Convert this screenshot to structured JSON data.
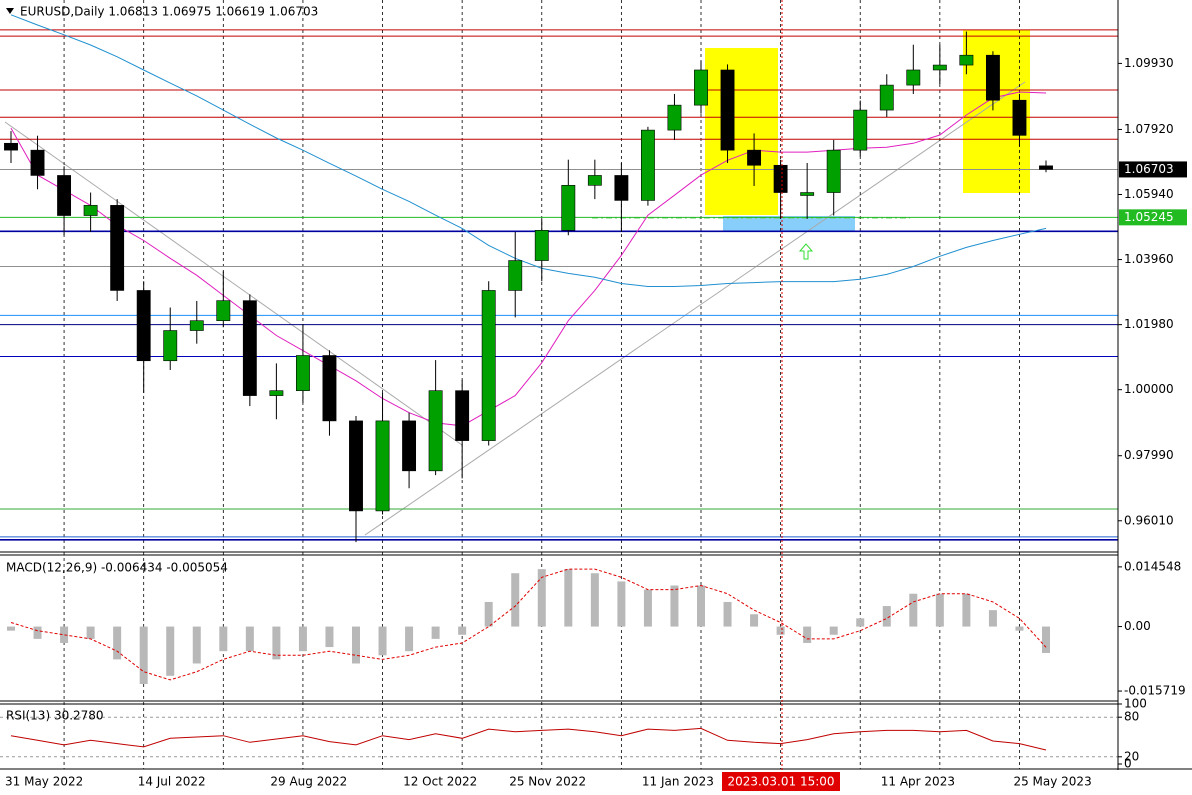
{
  "chart_data": {
    "type": "candlestick",
    "header": "EURUSD,Daily  1.06813 1.06975 1.06619 1.06703",
    "categories": [
      "31 May 2022",
      null,
      null,
      null,
      null,
      "14 Jul 2022",
      null,
      null,
      null,
      null,
      "29 Aug 2022",
      null,
      null,
      null,
      null,
      "12 Oct 2022",
      null,
      null,
      null,
      "25 Nov 2022",
      null,
      null,
      null,
      null,
      "11 Jan 2023",
      null,
      null,
      null,
      null,
      null,
      null,
      null,
      null,
      "11 Apr 2023",
      null,
      null,
      null,
      null,
      "25 May 2023",
      null
    ],
    "open": [
      1.075,
      1.0729,
      1.0652,
      1.053,
      1.0561,
      1.0302,
      1.0088,
      1.018,
      1.021,
      1.0271,
      0.9982,
      0.9997,
      1.0104,
      0.9905,
      0.9631,
      0.9905,
      0.9753,
      0.9997,
      0.9845,
      1.0302,
      1.0393,
      1.0485,
      1.0622,
      1.0652,
      1.0576,
      1.079,
      1.0866,
      1.0973,
      1.0729,
      1.0683,
      1.0591,
      1.06,
      1.0729,
      1.0851,
      1.0927,
      1.0973,
      1.0988,
      1.1018,
      1.0881,
      1.06813
    ],
    "high": [
      1.0787,
      1.0773,
      1.068,
      1.06,
      1.058,
      1.033,
      1.025,
      1.027,
      1.036,
      1.029,
      1.008,
      1.02,
      1.012,
      0.992,
      0.999,
      0.993,
      1.009,
      1.003,
      1.033,
      1.048,
      1.052,
      1.07,
      1.07,
      1.069,
      1.08,
      1.09,
      1.1,
      1.099,
      1.078,
      1.07,
      1.069,
      1.076,
      1.088,
      1.096,
      1.105,
      1.105,
      1.109,
      1.103,
      1.09,
      1.06975
    ],
    "low": [
      1.069,
      1.061,
      1.047,
      1.048,
      1.027,
      0.999,
      1.006,
      1.014,
      1.019,
      0.995,
      0.991,
      0.996,
      0.986,
      0.9536,
      0.962,
      0.97,
      0.974,
      0.973,
      0.983,
      1.022,
      1.033,
      1.047,
      1.058,
      1.048,
      1.056,
      1.076,
      1.084,
      1.069,
      1.062,
      1.052,
      1.052,
      1.053,
      1.071,
      1.083,
      1.09,
      1.093,
      1.096,
      1.085,
      1.074,
      1.06619
    ],
    "close": [
      1.0729,
      1.0652,
      1.053,
      1.0561,
      1.0302,
      1.0088,
      1.018,
      1.021,
      1.0271,
      0.9982,
      0.9997,
      1.0104,
      0.9905,
      0.9631,
      0.9905,
      0.9753,
      0.9997,
      0.9845,
      1.0302,
      1.0393,
      1.0485,
      1.0622,
      1.0652,
      1.0576,
      1.079,
      1.0866,
      1.0973,
      1.0729,
      1.0683,
      1.06,
      1.06,
      1.0729,
      1.0851,
      1.0927,
      1.0973,
      1.0988,
      1.1018,
      1.0881,
      1.0774,
      1.06703
    ],
    "up_color": "#00a000",
    "down_color": "#000000",
    "moving_averages": [
      {
        "color": "#e020c0",
        "values": [
          1.0796,
          1.0653,
          1.0607,
          1.0561,
          1.05,
          1.0454,
          1.04,
          1.0348,
          1.0287,
          1.0226,
          1.0165,
          1.0119,
          1.0073,
          1.0027,
          0.9973,
          0.993,
          0.9899,
          0.989,
          0.9936,
          0.9982,
          1.0082,
          1.021,
          1.0302,
          1.0409,
          1.0531,
          1.0592,
          1.0653,
          1.0698,
          1.0729,
          1.0723,
          1.0723,
          1.0729,
          1.0735,
          1.0738,
          1.075,
          1.0775,
          1.0836,
          1.0888,
          1.0906,
          1.0903
        ]
      },
      {
        "color": "#2090d0",
        "values": [
          1.1141,
          1.111,
          1.108,
          1.1049,
          1.1013,
          1.0973,
          1.0933,
          1.0894,
          1.0851,
          1.0808,
          1.0766,
          1.0729,
          1.0689,
          1.065,
          1.061,
          1.0573,
          1.0531,
          1.0491,
          1.0439,
          1.04,
          1.0369,
          1.0354,
          1.0342,
          1.0323,
          1.0314,
          1.0314,
          1.0317,
          1.0323,
          1.0326,
          1.0329,
          1.0329,
          1.0329,
          1.0336,
          1.0351,
          1.0375,
          1.0406,
          1.0433,
          1.0454,
          1.0473,
          1.0491
        ]
      }
    ],
    "levels": [
      {
        "value": 1.1095,
        "color": "#c00000"
      },
      {
        "value": 1.1076,
        "color": "#c00000"
      },
      {
        "value": 1.0912,
        "color": "#c00000"
      },
      {
        "value": 1.0829,
        "color": "#c00000"
      },
      {
        "value": 1.0762,
        "color": "#c00000"
      },
      {
        "value": 1.067,
        "color": "#909090"
      },
      {
        "value": 1.05245,
        "color": "#22bb22"
      },
      {
        "value": 1.0482,
        "color": "#0000a0"
      },
      {
        "value": 1.0375,
        "color": "#909090"
      },
      {
        "value": 1.0226,
        "color": "#1e90ff"
      },
      {
        "value": 1.0198,
        "color": "#000080"
      },
      {
        "value": 1.0101,
        "color": "#0000c0"
      },
      {
        "value": 0.9637,
        "color": "#33aa33"
      },
      {
        "value": 0.9552,
        "color": "#2060d0"
      },
      {
        "value": 0.9543,
        "color": "#0000a0"
      }
    ],
    "price_labels": [
      {
        "value": 1.06703,
        "color": "#000000"
      },
      {
        "value": 1.05245,
        "color": "#22bb22"
      }
    ],
    "ylim": [
      0.9509,
      1.1186
    ],
    "yticks": [
      {
        "value": 1.0993,
        "label": "1.09930"
      },
      {
        "value": 1.0792,
        "label": "1.07920"
      },
      {
        "value": 1.0594,
        "label": "1.05940"
      },
      {
        "value": 1.0396,
        "label": "1.03960"
      },
      {
        "value": 1.0198,
        "label": "1.01980"
      },
      {
        "value": 1,
        "label": "1.00000"
      },
      {
        "value": 0.9799,
        "label": "0.97990"
      },
      {
        "value": 0.9601,
        "label": "0.96010"
      }
    ],
    "crosshair": "2023.03.01 15:00",
    "macd": {
      "label": "MACD(12,26,9) -0.006434 -0.005054",
      "ylim": [
        -0.0179,
        0.0172
      ],
      "yticks": [
        0.014548,
        {
          "value": 0,
          "label": "0.00"
        },
        -0.015719
      ],
      "histogram": [
        -0.001,
        -0.003,
        -0.004,
        -0.003,
        -0.008,
        -0.014,
        -0.012,
        -0.009,
        -0.006,
        -0.006,
        -0.008,
        -0.006,
        -0.005,
        -0.009,
        -0.007,
        -0.006,
        -0.003,
        -0.002,
        0.006,
        0.013,
        0.014,
        0.014,
        0.013,
        0.011,
        0.009,
        0.01,
        0.01,
        0.006,
        0.003,
        -0.002,
        -0.004,
        -0.002,
        0.002,
        0.005,
        0.008,
        0.008,
        0.008,
        0.004,
        -0.001,
        -0.006434
      ],
      "signal": [
        0.001,
        -0.001,
        -0.002,
        -0.003,
        -0.006,
        -0.011,
        -0.013,
        -0.011,
        -0.008,
        -0.006,
        -0.007,
        -0.007,
        -0.006,
        -0.007,
        -0.008,
        -0.007,
        -0.005,
        -0.004,
        0.0,
        0.005,
        0.012,
        0.014,
        0.014,
        0.012,
        0.009,
        0.009,
        0.01,
        0.008,
        0.004,
        0.001,
        -0.003,
        -0.003,
        -0.001,
        0.002,
        0.006,
        0.008,
        0.008,
        0.006,
        0.002,
        -0.005054
      ],
      "histogram_color": "#b8b8b8",
      "signal_color": "#e00000"
    },
    "rsi": {
      "label": "RSI(13) 30.2780",
      "ylim": [
        0,
        100
      ],
      "yticks": [
        100,
        80,
        20,
        0
      ],
      "color": "#c00000",
      "values": [
        52,
        45,
        38,
        45,
        40,
        35,
        48,
        50,
        52,
        42,
        47,
        52,
        43,
        38,
        52,
        46,
        55,
        48,
        62,
        58,
        60,
        62,
        58,
        52,
        62,
        60,
        63,
        45,
        42,
        40,
        46,
        55,
        58,
        60,
        60,
        58,
        60,
        44,
        40,
        30.278
      ]
    }
  }
}
